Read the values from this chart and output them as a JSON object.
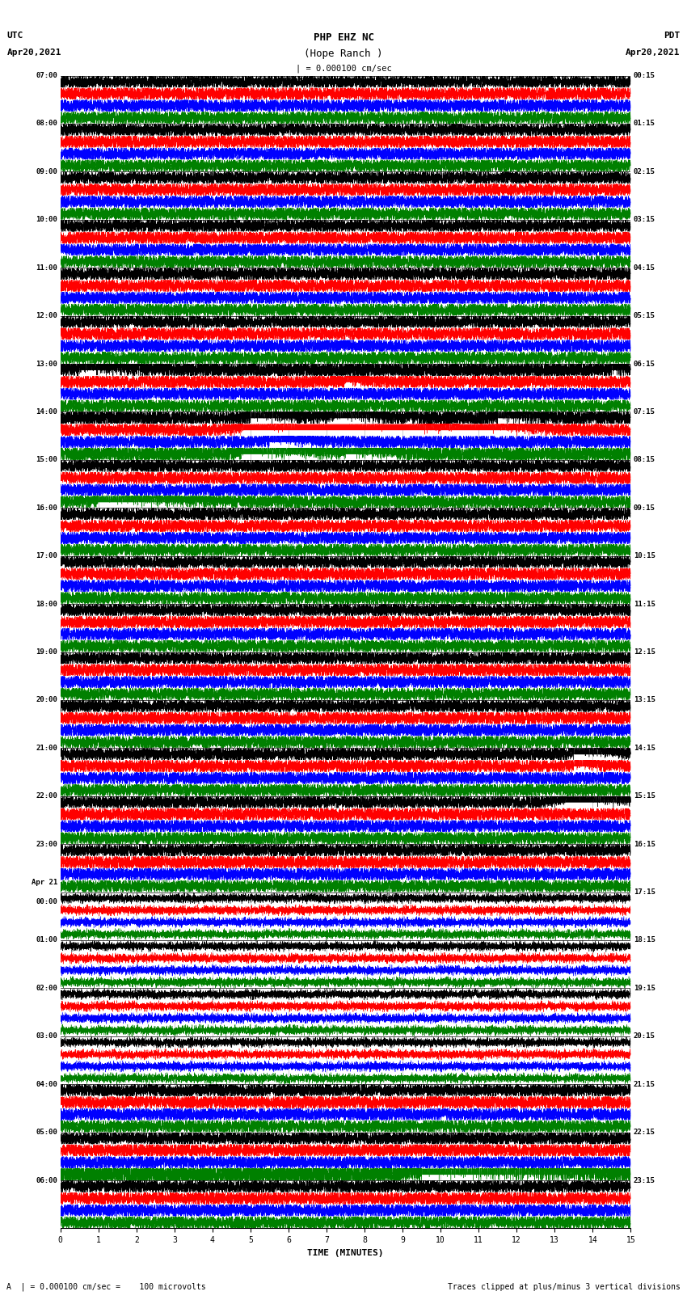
{
  "title_line1": "PHP EHZ NC",
  "title_line2": "(Hope Ranch )",
  "scale_label": "| = 0.000100 cm/sec",
  "left_header_line1": "UTC",
  "left_header_line2": "Apr20,2021",
  "right_header_line1": "PDT",
  "right_header_line2": "Apr20,2021",
  "xlabel": "TIME (MINUTES)",
  "footer_left": "A  | = 0.000100 cm/sec =    100 microvolts",
  "footer_right": "Traces clipped at plus/minus 3 vertical divisions",
  "utc_labels": [
    "07:00",
    "08:00",
    "09:00",
    "10:00",
    "11:00",
    "12:00",
    "13:00",
    "14:00",
    "15:00",
    "16:00",
    "17:00",
    "18:00",
    "19:00",
    "20:00",
    "21:00",
    "22:00",
    "23:00",
    "Apr 21\n00:00",
    "01:00",
    "02:00",
    "03:00",
    "04:00",
    "05:00",
    "06:00"
  ],
  "pdt_labels": [
    "00:15",
    "01:15",
    "02:15",
    "03:15",
    "04:15",
    "05:15",
    "06:15",
    "07:15",
    "08:15",
    "09:15",
    "10:15",
    "11:15",
    "12:15",
    "13:15",
    "14:15",
    "15:15",
    "16:15",
    "17:15",
    "18:15",
    "19:15",
    "20:15",
    "21:15",
    "22:15",
    "23:15"
  ],
  "n_rows": 24,
  "traces_per_row": 4,
  "trace_colors": [
    "black",
    "red",
    "blue",
    "green"
  ],
  "bg_color": "white",
  "n_minutes": 15,
  "n_points": 9000
}
